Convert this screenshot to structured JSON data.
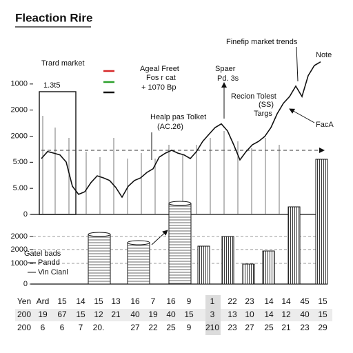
{
  "chart_data": [
    {
      "type": "line",
      "title": "Fleaction Rire",
      "values": [
        2.14,
        2.41,
        2.35,
        2.28,
        2.01,
        1.08,
        0.77,
        0.87,
        1.22,
        1.48,
        1.4,
        1.3,
        1.03,
        0.66,
        1.08,
        1.3,
        1.4,
        1.61,
        1.75,
        2.2,
        2.35,
        2.46,
        2.35,
        2.28,
        2.14,
        2.41,
        2.8,
        3.07,
        3.33,
        3.47,
        3.2,
        2.67,
        2.09,
        2.41,
        2.67,
        2.8,
        2.99,
        3.33,
        3.86,
        4.26,
        4.52,
        4.92,
        4.52,
        5.32,
        5.71,
        5.85
      ],
      "color": "#111111",
      "ylim": [
        0,
        6
      ],
      "yticks": [
        0,
        {
          "value": 1,
          "label": "5.00"
        },
        {
          "value": 2,
          "label": "5:00"
        },
        {
          "value": 3,
          "label": "2000"
        },
        {
          "value": 4,
          "label": "2000"
        },
        {
          "value": 5,
          "label": "1000"
        }
      ],
      "annotations": [
        "Trard market",
        "1.3t5",
        "Ageal Freet",
        "Fos r cat",
        "+ 1070 Bp",
        "Spaer",
        "Pd. 3s",
        "Finefip market trends",
        "Note",
        "Recion Tolest",
        "(SS)",
        "Targs",
        "FacA",
        "Healp pas Tolket",
        "(AC.26)"
      ]
    },
    {
      "type": "bar",
      "values": [
        1833,
        2300,
        967,
        1600,
        3733,
        6033
      ],
      "stacks": [
        2400,
        2000,
        3900
      ],
      "ylim": [
        0,
        6100
      ],
      "yticks": [
        0,
        1000,
        {
          "value": 1670,
          "label": "2000"
        },
        {
          "value": 2300,
          "label": "2000"
        }
      ],
      "grid": true,
      "annotations": [
        "Gatel bads",
        "Pandd",
        "Vin Cianl"
      ]
    }
  ],
  "table": {
    "rows": [
      [
        "Yen",
        "Ard",
        "15",
        "14",
        "15",
        "13",
        "16",
        "7",
        "16",
        "9",
        "1",
        "22",
        "23",
        "14",
        "14",
        "45",
        "15"
      ],
      [
        "200",
        "19",
        "67",
        "15",
        "12",
        "21",
        "40",
        "19",
        "40",
        "15",
        "3",
        "13",
        "10",
        "14",
        "12",
        "40",
        "15"
      ],
      [
        "200",
        "6",
        "6",
        "7",
        "20.",
        null,
        "27",
        "22",
        "25",
        "9",
        "210",
        "23",
        "27",
        "25",
        "21",
        "23",
        "29"
      ]
    ]
  }
}
